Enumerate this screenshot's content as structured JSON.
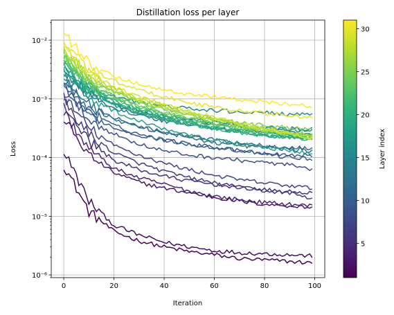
{
  "chart_data": {
    "type": "line",
    "title": "Distillation loss per layer",
    "xlabel": "Iteration",
    "ylabel": "Loss",
    "yscale": "log",
    "xlim": [
      -5,
      104
    ],
    "ylim": [
      9e-07,
      0.022
    ],
    "x_ticks": [
      0,
      20,
      40,
      60,
      80,
      100
    ],
    "x_tick_labels": [
      "0",
      "20",
      "40",
      "60",
      "80",
      "100"
    ],
    "y_ticks": [
      1e-06,
      1e-05,
      0.0001,
      0.001,
      0.01
    ],
    "y_tick_labels": [
      "10⁻⁶",
      "10⁻⁵",
      "10⁻⁴",
      "10⁻³",
      "10⁻²"
    ],
    "grid": true,
    "x": [
      0,
      10,
      20,
      30,
      40,
      50,
      60,
      70,
      80,
      90,
      99
    ],
    "series": [
      {
        "layer": 1,
        "values": [
          7.5e-05,
          1.2e-05,
          5.5e-06,
          3.8e-06,
          3e-06,
          2.5e-06,
          2.2e-06,
          1.9e-06,
          1.8e-06,
          1.7e-06,
          1.6e-06
        ]
      },
      {
        "layer": 2,
        "values": [
          0.00013,
          1.8e-05,
          7e-06,
          4.8e-06,
          3.6e-06,
          3e-06,
          2.6e-06,
          2.4e-06,
          2.3e-06,
          2.2e-06,
          2.1e-06
        ]
      },
      {
        "layer": 3,
        "values": [
          0.00045,
          0.00011,
          5.5e-05,
          3.8e-05,
          3e-05,
          2.5e-05,
          2.1e-05,
          1.8e-05,
          1.6e-05,
          1.5e-05,
          1.4e-05
        ]
      },
      {
        "layer": 4,
        "values": [
          0.0006,
          0.00014,
          6.5e-05,
          4.5e-05,
          3.5e-05,
          2.7e-05,
          2.2e-05,
          1.9e-05,
          1.7e-05,
          1.6e-05,
          1.5e-05
        ]
      },
      {
        "layer": 5,
        "values": [
          0.0008,
          0.00019,
          9e-05,
          6.2e-05,
          4.8e-05,
          4e-05,
          3.5e-05,
          3.1e-05,
          2.8e-05,
          2.6e-05,
          2.5e-05
        ]
      },
      {
        "layer": 6,
        "values": [
          0.0009,
          0.00025,
          0.00012,
          8e-05,
          5.8e-05,
          4.5e-05,
          3.7e-05,
          3.1e-05,
          2.7e-05,
          2.5e-05,
          2e-05
        ]
      },
      {
        "layer": 7,
        "values": [
          0.0011,
          0.00032,
          0.00016,
          0.00011,
          8e-05,
          6.2e-05,
          5e-05,
          4.2e-05,
          3.7e-05,
          3.3e-05,
          3e-05
        ]
      },
      {
        "layer": 8,
        "values": [
          0.0013,
          0.00045,
          0.00025,
          0.00017,
          0.00013,
          0.00011,
          0.0001,
          9e-05,
          8.2e-05,
          7.5e-05,
          6e-05
        ]
      },
      {
        "layer": 9,
        "values": [
          0.0015,
          0.00055,
          0.00032,
          0.00024,
          0.0002,
          0.00017,
          0.00015,
          0.00013,
          0.000115,
          0.0001,
          9.5e-05
        ]
      },
      {
        "layer": 10,
        "values": [
          0.0017,
          0.0006,
          0.00035,
          0.00025,
          0.0002,
          0.00017,
          0.00015,
          0.00013,
          0.00012,
          0.00011,
          0.00011
        ]
      },
      {
        "layer": 11,
        "values": [
          0.0019,
          0.00075,
          0.00045,
          0.00033,
          0.00027,
          0.00023,
          0.0002,
          0.00018,
          0.00016,
          0.00015,
          0.00014
        ]
      },
      {
        "layer": 12,
        "values": [
          0.0021,
          0.0008,
          0.00048,
          0.00034,
          0.00027,
          0.00022,
          0.00018,
          0.00016,
          0.00015,
          0.00014,
          0.00013
        ]
      },
      {
        "layer": 13,
        "values": [
          0.0023,
          0.0011,
          0.0007,
          0.00052,
          0.00042,
          0.00036,
          0.00032,
          0.00029,
          0.00027,
          0.00026,
          0.00025
        ]
      },
      {
        "layer": 14,
        "values": [
          0.0025,
          0.0013,
          0.00085,
          0.00064,
          0.00052,
          0.00045,
          0.0004,
          0.00036,
          0.00033,
          0.00031,
          0.0003
        ]
      },
      {
        "layer": 15,
        "values": [
          0.0027,
          0.0015,
          0.0011,
          0.00087,
          0.00075,
          0.00068,
          0.00063,
          0.0006,
          0.00058,
          0.00055,
          0.00052
        ]
      },
      {
        "layer": 16,
        "values": [
          0.0029,
          0.0012,
          0.00078,
          0.00058,
          0.00048,
          0.00042,
          0.00038,
          0.00035,
          0.00032,
          0.0003,
          0.00028
        ]
      },
      {
        "layer": 17,
        "values": [
          0.0031,
          0.0013,
          0.0008,
          0.00058,
          0.00045,
          0.00037,
          0.00031,
          0.00027,
          0.00024,
          0.00022,
          0.00021
        ]
      },
      {
        "layer": 18,
        "values": [
          0.0033,
          0.0011,
          0.00062,
          0.00042,
          0.00031,
          0.00025,
          0.0002,
          0.00017,
          0.00015,
          0.00013,
          0.00012
        ]
      },
      {
        "layer": 19,
        "values": [
          0.0036,
          0.0014,
          0.00083,
          0.00058,
          0.00045,
          0.00037,
          0.00031,
          0.00027,
          0.00024,
          0.00022,
          0.0002
        ]
      },
      {
        "layer": 20,
        "values": [
          0.0039,
          0.0015,
          0.00088,
          0.0006,
          0.00046,
          0.00037,
          0.00031,
          0.00027,
          0.00024,
          0.00022,
          0.0002
        ]
      },
      {
        "layer": 21,
        "values": [
          0.0042,
          0.0016,
          0.00095,
          0.00065,
          0.0005,
          0.0004,
          0.00033,
          0.00029,
          0.00026,
          0.00024,
          0.00022
        ]
      },
      {
        "layer": 22,
        "values": [
          0.0045,
          0.0017,
          0.001,
          0.0007,
          0.00053,
          0.00042,
          0.00035,
          0.0003,
          0.00027,
          0.00024,
          0.00022
        ]
      },
      {
        "layer": 23,
        "values": [
          0.0048,
          0.0018,
          0.0011,
          0.00075,
          0.00057,
          0.00046,
          0.00038,
          0.00033,
          0.00029,
          0.00026,
          0.00024
        ]
      },
      {
        "layer": 24,
        "values": [
          0.0052,
          0.0019,
          0.0011,
          0.00077,
          0.00058,
          0.00046,
          0.00038,
          0.00032,
          0.00028,
          0.00025,
          0.00023
        ]
      },
      {
        "layer": 25,
        "values": [
          0.0056,
          0.0021,
          0.0013,
          0.0009,
          0.00068,
          0.00055,
          0.00046,
          0.0004,
          0.00035,
          0.00032,
          0.0003
        ]
      },
      {
        "layer": 26,
        "values": [
          0.006,
          0.0022,
          0.0013,
          0.0009,
          0.00068,
          0.00053,
          0.00043,
          0.00036,
          0.0003,
          0.00027,
          0.00024
        ]
      },
      {
        "layer": 27,
        "values": [
          0.0065,
          0.0024,
          0.0014,
          0.00095,
          0.0007,
          0.00055,
          0.00044,
          0.00036,
          0.0003,
          0.00026,
          0.00022
        ]
      },
      {
        "layer": 28,
        "values": [
          0.007,
          0.0026,
          0.0015,
          0.001,
          0.00075,
          0.00058,
          0.00046,
          0.00037,
          0.0003,
          0.00025,
          0.00021
        ]
      },
      {
        "layer": 29,
        "values": [
          0.0078,
          0.0028,
          0.0016,
          0.0011,
          0.0008,
          0.00061,
          0.00048,
          0.00038,
          0.00031,
          0.00026,
          0.00022
        ]
      },
      {
        "layer": 30,
        "values": [
          0.009,
          0.0033,
          0.002,
          0.0014,
          0.0011,
          0.00085,
          0.00072,
          0.00063,
          0.00057,
          0.00052,
          0.00048
        ]
      },
      {
        "layer": 31,
        "values": [
          0.013,
          0.004,
          0.0024,
          0.0018,
          0.0014,
          0.0012,
          0.0011,
          0.00097,
          0.0009,
          0.00082,
          0.00072
        ]
      }
    ],
    "colorbar": {
      "label": "Layer index",
      "range": [
        1,
        31
      ],
      "ticks": [
        5,
        10,
        15,
        20,
        25,
        30
      ],
      "tick_labels": [
        "5",
        "10",
        "15",
        "20",
        "25",
        "30"
      ],
      "colormap": "viridis",
      "colormap_stops": [
        "#440154",
        "#482878",
        "#3e4989",
        "#31688e",
        "#26828e",
        "#1f9e89",
        "#35b779",
        "#6ece58",
        "#b5de2b",
        "#fde725"
      ]
    }
  }
}
